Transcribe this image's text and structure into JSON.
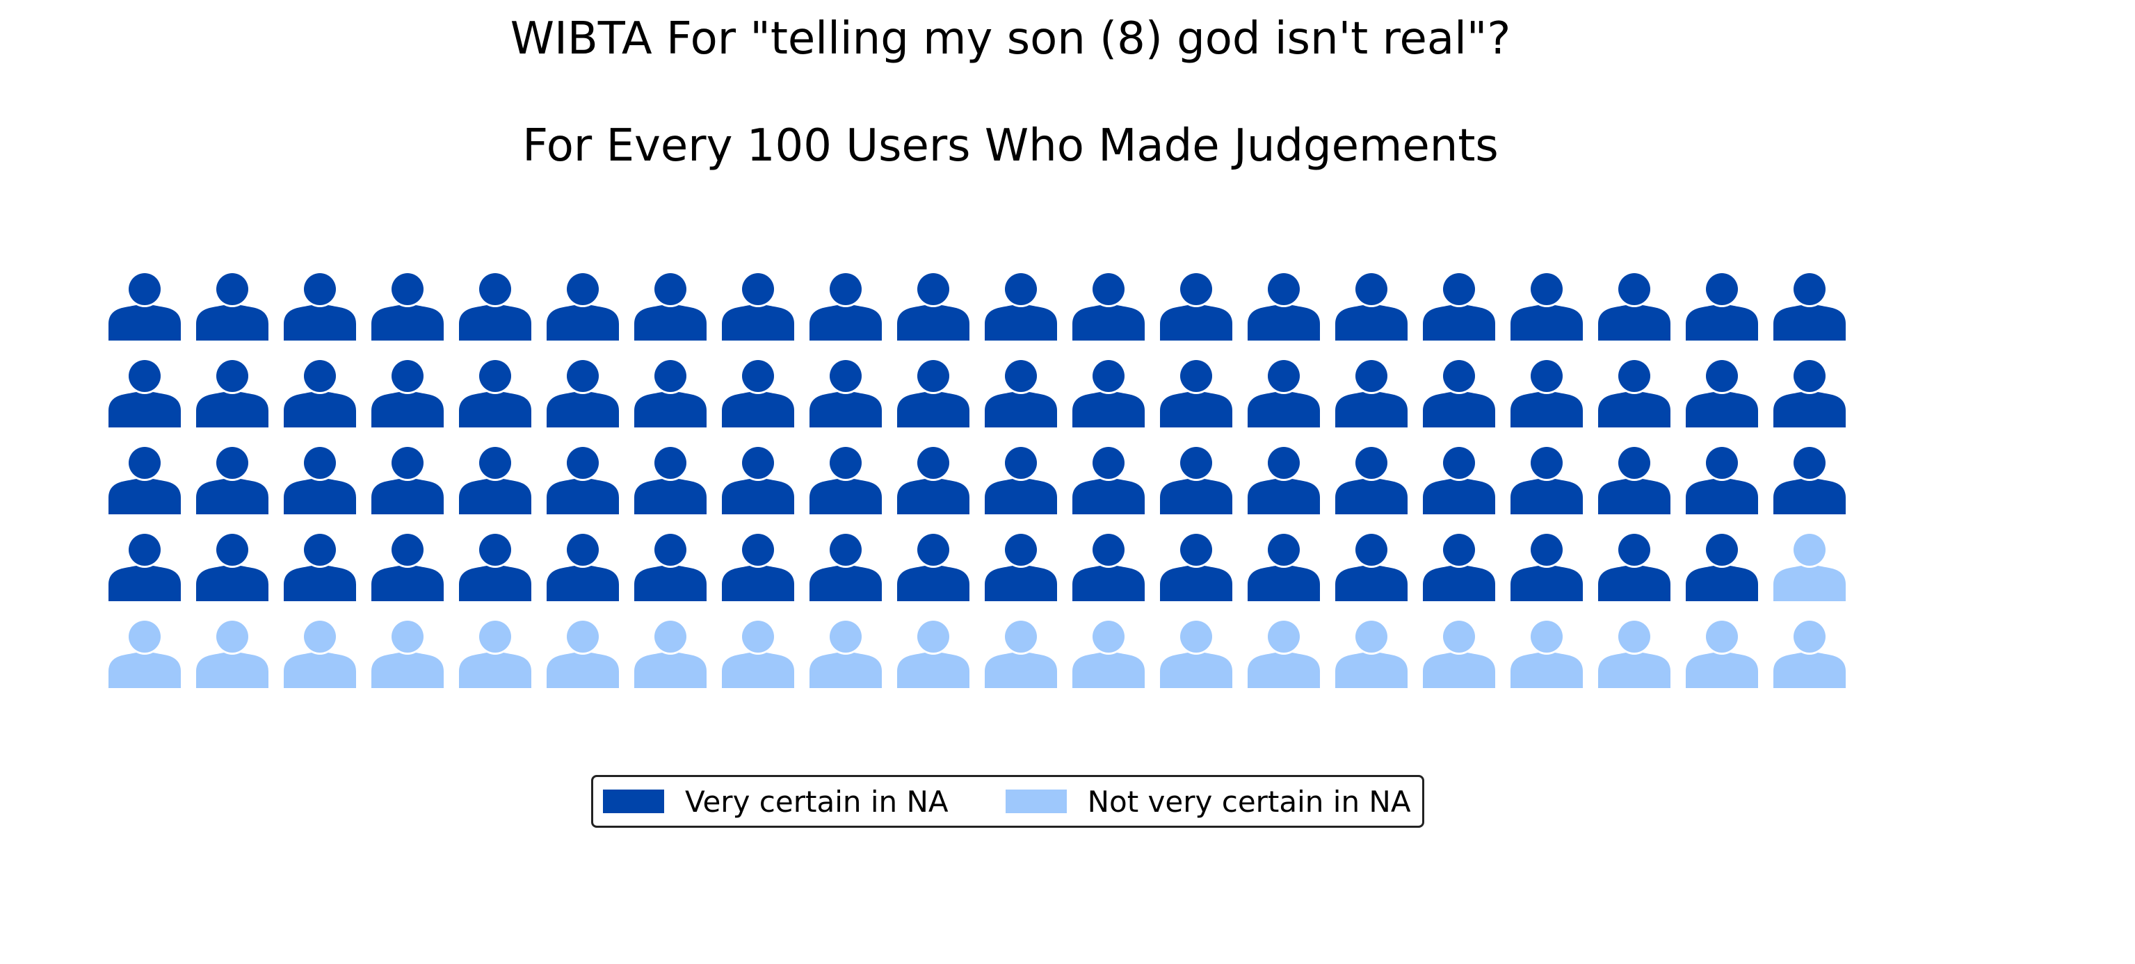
{
  "chart_data": {
    "type": "waffle",
    "title": "WIBTA For \"telling my son (8) god isn't real\"?",
    "subtitle": "For Every 100 Users Who Made Judgements",
    "rows": 5,
    "columns": 20,
    "series": [
      {
        "name": "Very certain in NA",
        "value": 79,
        "color": "#0044AA"
      },
      {
        "name": "Not very certain in NA",
        "value": 21,
        "color": "#9EC8FC"
      }
    ],
    "icon": "person-icon",
    "legend_position": "bottom-center"
  }
}
